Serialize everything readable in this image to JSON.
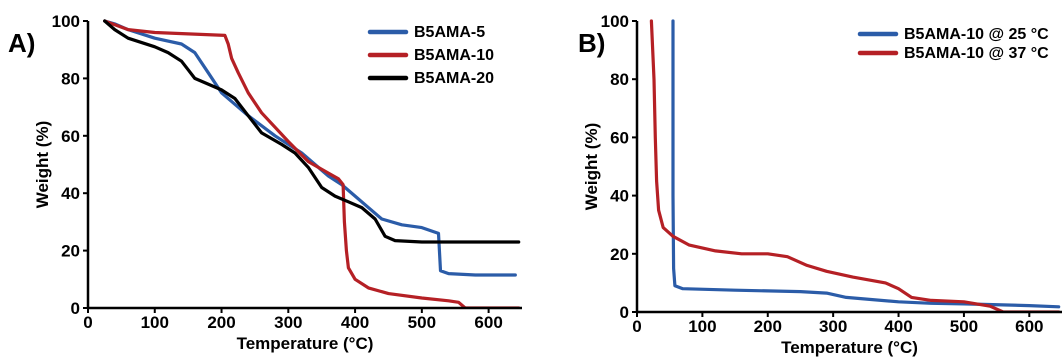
{
  "chart_data": [
    {
      "panel": "A)",
      "type": "line",
      "xlabel": "Temperature (°C)",
      "ylabel": "Weight (%)",
      "xlim": [
        0,
        650
      ],
      "ylim": [
        0,
        100
      ],
      "xticks": [
        0,
        100,
        200,
        300,
        400,
        500,
        600
      ],
      "yticks": [
        0,
        20,
        40,
        60,
        80,
        100
      ],
      "legend_position": "top-right",
      "series": [
        {
          "name": "B5AMA-5",
          "color": "#2b5ca8",
          "points": [
            [
              25,
              100
            ],
            [
              40,
              99
            ],
            [
              60,
              97
            ],
            [
              100,
              94
            ],
            [
              140,
              92
            ],
            [
              160,
              89
            ],
            [
              180,
              82
            ],
            [
              200,
              75
            ],
            [
              240,
              67
            ],
            [
              280,
              60
            ],
            [
              320,
              54
            ],
            [
              360,
              46
            ],
            [
              380,
              43
            ],
            [
              400,
              39
            ],
            [
              420,
              35
            ],
            [
              440,
              31
            ],
            [
              470,
              29
            ],
            [
              500,
              28
            ],
            [
              525,
              26
            ],
            [
              528,
              13
            ],
            [
              540,
              12
            ],
            [
              580,
              11.5
            ],
            [
              640,
              11.5
            ]
          ]
        },
        {
          "name": "B5AMA-10",
          "color": "#b52025",
          "points": [
            [
              25,
              100
            ],
            [
              60,
              97
            ],
            [
              100,
              96
            ],
            [
              150,
              95.5
            ],
            [
              205,
              95
            ],
            [
              210,
              92
            ],
            [
              215,
              87
            ],
            [
              225,
              82
            ],
            [
              240,
              75
            ],
            [
              260,
              68
            ],
            [
              280,
              63
            ],
            [
              300,
              58
            ],
            [
              330,
              51
            ],
            [
              360,
              47
            ],
            [
              375,
              45
            ],
            [
              382,
              43
            ],
            [
              384,
              30
            ],
            [
              387,
              20
            ],
            [
              390,
              14
            ],
            [
              400,
              10
            ],
            [
              420,
              7
            ],
            [
              450,
              5
            ],
            [
              500,
              3.5
            ],
            [
              540,
              2.5
            ],
            [
              555,
              2
            ],
            [
              565,
              0
            ],
            [
              645,
              0
            ]
          ]
        },
        {
          "name": "B5AMA-20",
          "color": "#000000",
          "points": [
            [
              25,
              100
            ],
            [
              40,
              97
            ],
            [
              60,
              94
            ],
            [
              100,
              91
            ],
            [
              120,
              89
            ],
            [
              140,
              86
            ],
            [
              150,
              83
            ],
            [
              160,
              80
            ],
            [
              180,
              78
            ],
            [
              200,
              76
            ],
            [
              220,
              73
            ],
            [
              240,
              67
            ],
            [
              260,
              61
            ],
            [
              290,
              57
            ],
            [
              310,
              54
            ],
            [
              330,
              49
            ],
            [
              350,
              42
            ],
            [
              370,
              39
            ],
            [
              390,
              37
            ],
            [
              410,
              35
            ],
            [
              430,
              31
            ],
            [
              445,
              25
            ],
            [
              460,
              23.5
            ],
            [
              500,
              23
            ],
            [
              600,
              23
            ],
            [
              645,
              23
            ]
          ]
        }
      ]
    },
    {
      "panel": "B)",
      "type": "line",
      "xlabel": "Temperature (°C)",
      "ylabel": "Weight (%)",
      "xlim": [
        0,
        650
      ],
      "ylim": [
        0,
        100
      ],
      "xticks": [
        0,
        100,
        200,
        300,
        400,
        500,
        600
      ],
      "yticks": [
        0,
        20,
        40,
        60,
        80,
        100
      ],
      "legend_position": "top-right",
      "series": [
        {
          "name": "B5AMA-10 @ 25 °C",
          "color": "#2b5ca8",
          "points": [
            [
              55,
              100
            ],
            [
              55,
              40
            ],
            [
              56,
              15
            ],
            [
              58,
              9
            ],
            [
              70,
              8
            ],
            [
              150,
              7.5
            ],
            [
              250,
              7
            ],
            [
              290,
              6.5
            ],
            [
              320,
              5
            ],
            [
              400,
              3.5
            ],
            [
              450,
              3
            ],
            [
              500,
              2.8
            ],
            [
              600,
              2.2
            ],
            [
              645,
              1.8
            ]
          ]
        },
        {
          "name": "B5AMA-10 @ 37 °C",
          "color": "#b52025",
          "points": [
            [
              22,
              100
            ],
            [
              26,
              80
            ],
            [
              28,
              60
            ],
            [
              30,
              45
            ],
            [
              33,
              35
            ],
            [
              40,
              29
            ],
            [
              55,
              26
            ],
            [
              80,
              23
            ],
            [
              120,
              21
            ],
            [
              160,
              20
            ],
            [
              200,
              20
            ],
            [
              230,
              19
            ],
            [
              260,
              16
            ],
            [
              290,
              14
            ],
            [
              330,
              12
            ],
            [
              380,
              10
            ],
            [
              400,
              8
            ],
            [
              420,
              5
            ],
            [
              450,
              4
            ],
            [
              500,
              3.5
            ],
            [
              540,
              2
            ],
            [
              560,
              0
            ],
            [
              645,
              0
            ]
          ]
        }
      ]
    }
  ]
}
